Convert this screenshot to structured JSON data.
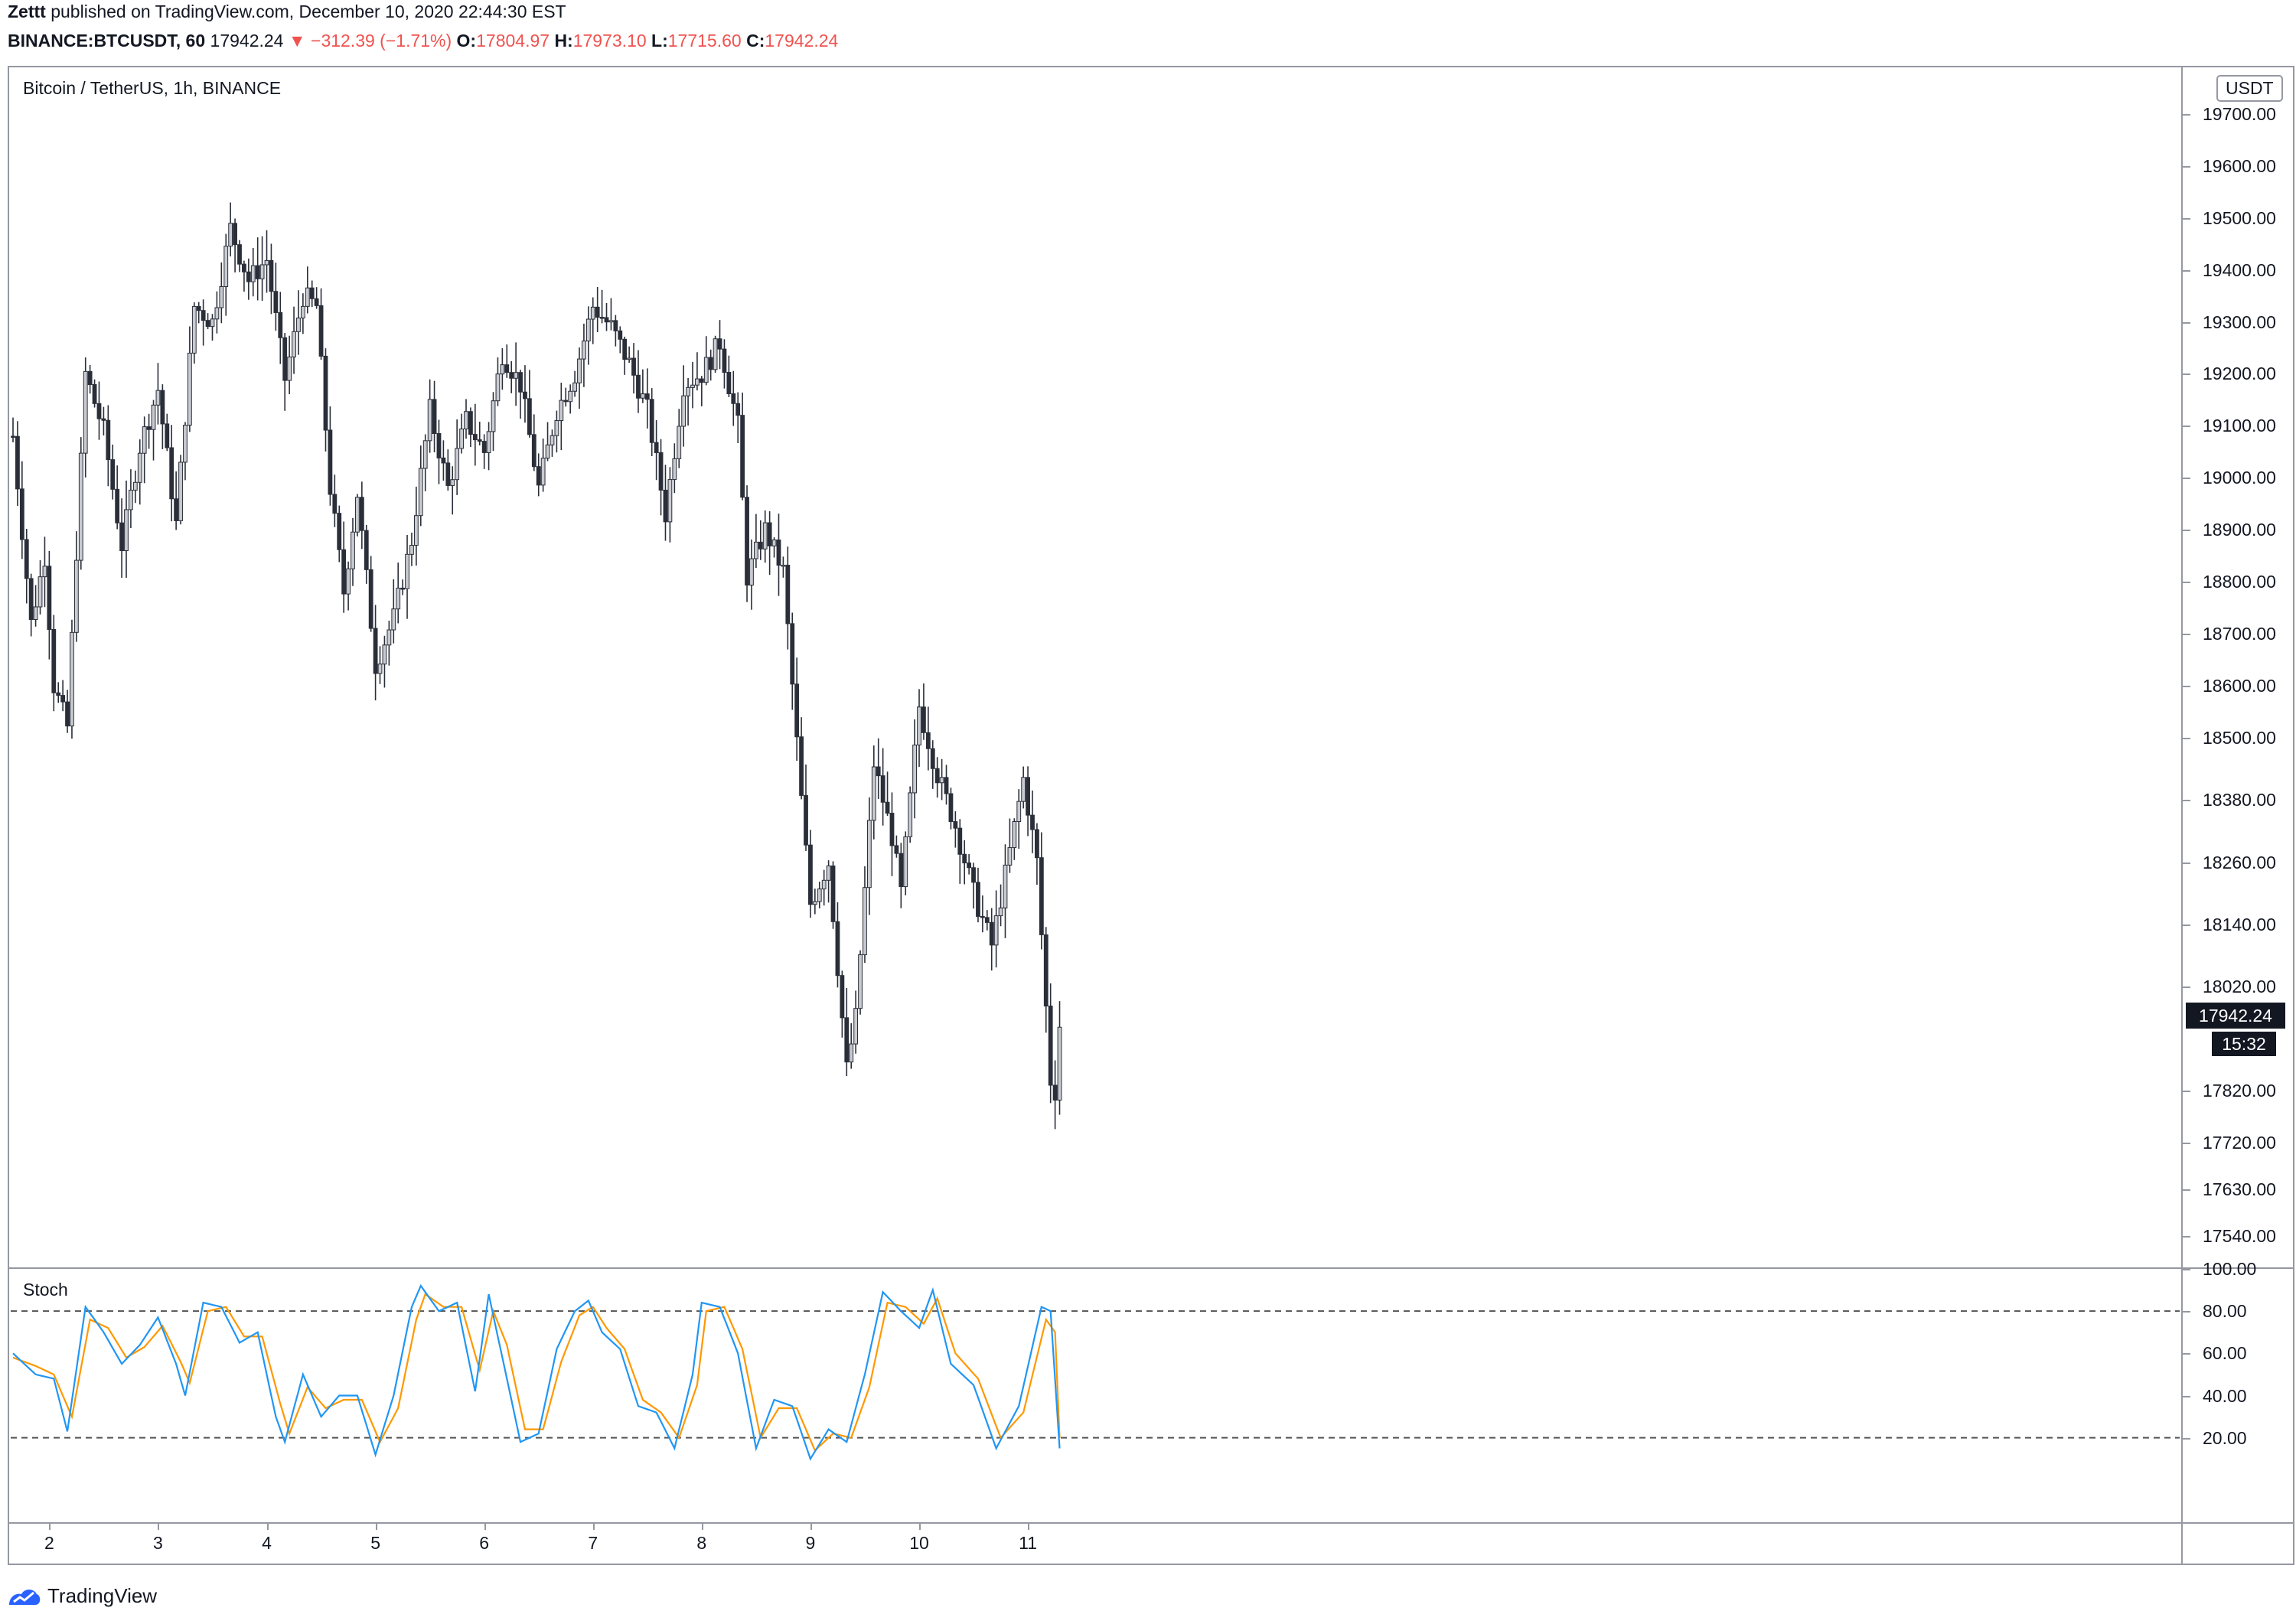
{
  "header": {
    "author": "Zettt",
    "published_text": "published on TradingView.com, December 10, 2020 22:44:30 EST",
    "symbol_line": "BINANCE:BTCUSDT, 60",
    "last_price": "17942.24",
    "change": "▼ −312.39 (−1.71%)",
    "open_label": "O:",
    "open": "17804.97",
    "high_label": "H:",
    "high": "17973.10",
    "low_label": "L:",
    "low": "17715.60",
    "close_label": "C:",
    "close": "17942.24"
  },
  "main_pane": {
    "title": "Bitcoin / TetherUS, 1h, BINANCE",
    "unit": "USDT",
    "price_tag": "17942.24",
    "countdown": "15:32"
  },
  "stoch_pane": {
    "title": "Stoch"
  },
  "brand": {
    "name": "TradingView",
    "icon": "tradingview-logo-icon"
  },
  "colors": {
    "up_fill": "#c9cbd1",
    "down_fill": "#2a2e39",
    "wick": "#2a2e39",
    "k_line": "#2196f3",
    "d_line": "#ff9800",
    "grid_dash": "#555555"
  },
  "chart_data": [
    {
      "type": "candlestick",
      "title": "Bitcoin / TetherUS, 1h, BINANCE",
      "y_axis_ticks": [
        "19700.00",
        "19600.00",
        "19500.00",
        "19400.00",
        "19300.00",
        "19200.00",
        "19100.00",
        "19000.00",
        "18900.00",
        "18800.00",
        "18700.00",
        "18600.00",
        "18500.00",
        "18380.00",
        "18260.00",
        "18140.00",
        "18020.00",
        "17820.00",
        "17720.00",
        "17630.00",
        "17540.00"
      ],
      "x_axis_ticks": [
        "2",
        "3",
        "4",
        "5",
        "6",
        "7",
        "8",
        "9",
        "10",
        "11"
      ],
      "ylim": [
        17480,
        19790
      ],
      "bar_interval": "1h",
      "anchors": [
        {
          "t": 0,
          "p": 19080
        },
        {
          "t": 4,
          "p": 18720
        },
        {
          "t": 7,
          "p": 18850
        },
        {
          "t": 9,
          "p": 18600
        },
        {
          "t": 12,
          "p": 18520
        },
        {
          "t": 16,
          "p": 19200
        },
        {
          "t": 20,
          "p": 19090
        },
        {
          "t": 24,
          "p": 18870
        },
        {
          "t": 28,
          "p": 19060
        },
        {
          "t": 32,
          "p": 19170
        },
        {
          "t": 36,
          "p": 18910
        },
        {
          "t": 40,
          "p": 19330
        },
        {
          "t": 44,
          "p": 19300
        },
        {
          "t": 48,
          "p": 19480
        },
        {
          "t": 52,
          "p": 19380
        },
        {
          "t": 56,
          "p": 19420
        },
        {
          "t": 60,
          "p": 19190
        },
        {
          "t": 64,
          "p": 19350
        },
        {
          "t": 67,
          "p": 19330
        },
        {
          "t": 70,
          "p": 18980
        },
        {
          "t": 73,
          "p": 18780
        },
        {
          "t": 76,
          "p": 18970
        },
        {
          "t": 80,
          "p": 18640
        },
        {
          "t": 84,
          "p": 18730
        },
        {
          "t": 88,
          "p": 18880
        },
        {
          "t": 92,
          "p": 19130
        },
        {
          "t": 96,
          "p": 18980
        },
        {
          "t": 100,
          "p": 19110
        },
        {
          "t": 104,
          "p": 19050
        },
        {
          "t": 108,
          "p": 19240
        },
        {
          "t": 112,
          "p": 19180
        },
        {
          "t": 116,
          "p": 18980
        },
        {
          "t": 120,
          "p": 19130
        },
        {
          "t": 124,
          "p": 19200
        },
        {
          "t": 128,
          "p": 19330
        },
        {
          "t": 132,
          "p": 19290
        },
        {
          "t": 136,
          "p": 19220
        },
        {
          "t": 140,
          "p": 19130
        },
        {
          "t": 144,
          "p": 18930
        },
        {
          "t": 148,
          "p": 19180
        },
        {
          "t": 152,
          "p": 19200
        },
        {
          "t": 156,
          "p": 19260
        },
        {
          "t": 160,
          "p": 19100
        },
        {
          "t": 162,
          "p": 18810
        },
        {
          "t": 166,
          "p": 18900
        },
        {
          "t": 170,
          "p": 18820
        },
        {
          "t": 174,
          "p": 18380
        },
        {
          "t": 176,
          "p": 18180
        },
        {
          "t": 180,
          "p": 18260
        },
        {
          "t": 184,
          "p": 17860
        },
        {
          "t": 186,
          "p": 17960
        },
        {
          "t": 190,
          "p": 18450
        },
        {
          "t": 194,
          "p": 18310
        },
        {
          "t": 196,
          "p": 18200
        },
        {
          "t": 200,
          "p": 18560
        },
        {
          "t": 204,
          "p": 18430
        },
        {
          "t": 208,
          "p": 18330
        },
        {
          "t": 212,
          "p": 18200
        },
        {
          "t": 216,
          "p": 18100
        },
        {
          "t": 220,
          "p": 18280
        },
        {
          "t": 223,
          "p": 18420
        },
        {
          "t": 226,
          "p": 18260
        },
        {
          "t": 229,
          "p": 17840
        },
        {
          "t": 230,
          "p": 17820
        },
        {
          "t": 231,
          "p": 17942.24
        }
      ]
    },
    {
      "type": "line",
      "title": "Stoch",
      "y_axis_ticks": [
        "100.00",
        "80.00",
        "60.00",
        "40.00",
        "20.00"
      ],
      "ylim": [
        -20,
        100
      ],
      "bands": [
        80,
        20
      ],
      "series": [
        {
          "key": "k",
          "anchors": [
            {
              "t": 0,
              "v": 60
            },
            {
              "t": 5,
              "v": 50
            },
            {
              "t": 9,
              "v": 48
            },
            {
              "t": 12,
              "v": 23
            },
            {
              "t": 16,
              "v": 82
            },
            {
              "t": 20,
              "v": 70
            },
            {
              "t": 24,
              "v": 55
            },
            {
              "t": 28,
              "v": 64
            },
            {
              "t": 32,
              "v": 77
            },
            {
              "t": 36,
              "v": 55
            },
            {
              "t": 38,
              "v": 40
            },
            {
              "t": 42,
              "v": 84
            },
            {
              "t": 46,
              "v": 82
            },
            {
              "t": 50,
              "v": 65
            },
            {
              "t": 54,
              "v": 70
            },
            {
              "t": 58,
              "v": 30
            },
            {
              "t": 60,
              "v": 18
            },
            {
              "t": 64,
              "v": 50
            },
            {
              "t": 68,
              "v": 30
            },
            {
              "t": 72,
              "v": 40
            },
            {
              "t": 76,
              "v": 40
            },
            {
              "t": 80,
              "v": 12
            },
            {
              "t": 84,
              "v": 40
            },
            {
              "t": 88,
              "v": 82
            },
            {
              "t": 90,
              "v": 92
            },
            {
              "t": 94,
              "v": 80
            },
            {
              "t": 98,
              "v": 84
            },
            {
              "t": 102,
              "v": 42
            },
            {
              "t": 105,
              "v": 88
            },
            {
              "t": 108,
              "v": 58
            },
            {
              "t": 112,
              "v": 18
            },
            {
              "t": 116,
              "v": 22
            },
            {
              "t": 120,
              "v": 62
            },
            {
              "t": 124,
              "v": 80
            },
            {
              "t": 127,
              "v": 85
            },
            {
              "t": 130,
              "v": 70
            },
            {
              "t": 134,
              "v": 62
            },
            {
              "t": 138,
              "v": 35
            },
            {
              "t": 142,
              "v": 32
            },
            {
              "t": 146,
              "v": 15
            },
            {
              "t": 150,
              "v": 50
            },
            {
              "t": 152,
              "v": 84
            },
            {
              "t": 156,
              "v": 82
            },
            {
              "t": 160,
              "v": 60
            },
            {
              "t": 164,
              "v": 15
            },
            {
              "t": 168,
              "v": 38
            },
            {
              "t": 172,
              "v": 35
            },
            {
              "t": 176,
              "v": 10
            },
            {
              "t": 180,
              "v": 24
            },
            {
              "t": 184,
              "v": 18
            },
            {
              "t": 188,
              "v": 50
            },
            {
              "t": 192,
              "v": 89
            },
            {
              "t": 196,
              "v": 80
            },
            {
              "t": 200,
              "v": 72
            },
            {
              "t": 203,
              "v": 90
            },
            {
              "t": 207,
              "v": 55
            },
            {
              "t": 212,
              "v": 45
            },
            {
              "t": 217,
              "v": 15
            },
            {
              "t": 222,
              "v": 35
            },
            {
              "t": 227,
              "v": 82
            },
            {
              "t": 229,
              "v": 80
            },
            {
              "t": 231,
              "v": 15
            }
          ]
        },
        {
          "key": "d",
          "anchors": [
            {
              "t": 0,
              "v": 58
            },
            {
              "t": 5,
              "v": 54
            },
            {
              "t": 9,
              "v": 50
            },
            {
              "t": 13,
              "v": 30
            },
            {
              "t": 17,
              "v": 76
            },
            {
              "t": 21,
              "v": 72
            },
            {
              "t": 25,
              "v": 58
            },
            {
              "t": 29,
              "v": 63
            },
            {
              "t": 33,
              "v": 73
            },
            {
              "t": 37,
              "v": 56
            },
            {
              "t": 39,
              "v": 46
            },
            {
              "t": 43,
              "v": 80
            },
            {
              "t": 47,
              "v": 82
            },
            {
              "t": 51,
              "v": 68
            },
            {
              "t": 55,
              "v": 68
            },
            {
              "t": 59,
              "v": 36
            },
            {
              "t": 61,
              "v": 22
            },
            {
              "t": 65,
              "v": 44
            },
            {
              "t": 69,
              "v": 34
            },
            {
              "t": 73,
              "v": 38
            },
            {
              "t": 77,
              "v": 38
            },
            {
              "t": 81,
              "v": 18
            },
            {
              "t": 85,
              "v": 34
            },
            {
              "t": 89,
              "v": 76
            },
            {
              "t": 91,
              "v": 88
            },
            {
              "t": 95,
              "v": 82
            },
            {
              "t": 99,
              "v": 82
            },
            {
              "t": 103,
              "v": 52
            },
            {
              "t": 106,
              "v": 80
            },
            {
              "t": 109,
              "v": 64
            },
            {
              "t": 113,
              "v": 24
            },
            {
              "t": 117,
              "v": 24
            },
            {
              "t": 121,
              "v": 56
            },
            {
              "t": 125,
              "v": 78
            },
            {
              "t": 128,
              "v": 82
            },
            {
              "t": 131,
              "v": 72
            },
            {
              "t": 135,
              "v": 62
            },
            {
              "t": 139,
              "v": 38
            },
            {
              "t": 143,
              "v": 32
            },
            {
              "t": 147,
              "v": 20
            },
            {
              "t": 151,
              "v": 45
            },
            {
              "t": 153,
              "v": 80
            },
            {
              "t": 157,
              "v": 82
            },
            {
              "t": 161,
              "v": 62
            },
            {
              "t": 165,
              "v": 20
            },
            {
              "t": 169,
              "v": 34
            },
            {
              "t": 173,
              "v": 34
            },
            {
              "t": 177,
              "v": 14
            },
            {
              "t": 181,
              "v": 22
            },
            {
              "t": 185,
              "v": 20
            },
            {
              "t": 189,
              "v": 44
            },
            {
              "t": 193,
              "v": 84
            },
            {
              "t": 197,
              "v": 82
            },
            {
              "t": 201,
              "v": 74
            },
            {
              "t": 204,
              "v": 86
            },
            {
              "t": 208,
              "v": 60
            },
            {
              "t": 213,
              "v": 48
            },
            {
              "t": 218,
              "v": 20
            },
            {
              "t": 223,
              "v": 32
            },
            {
              "t": 228,
              "v": 76
            },
            {
              "t": 230,
              "v": 70
            },
            {
              "t": 231,
              "v": 20
            }
          ]
        }
      ]
    }
  ]
}
